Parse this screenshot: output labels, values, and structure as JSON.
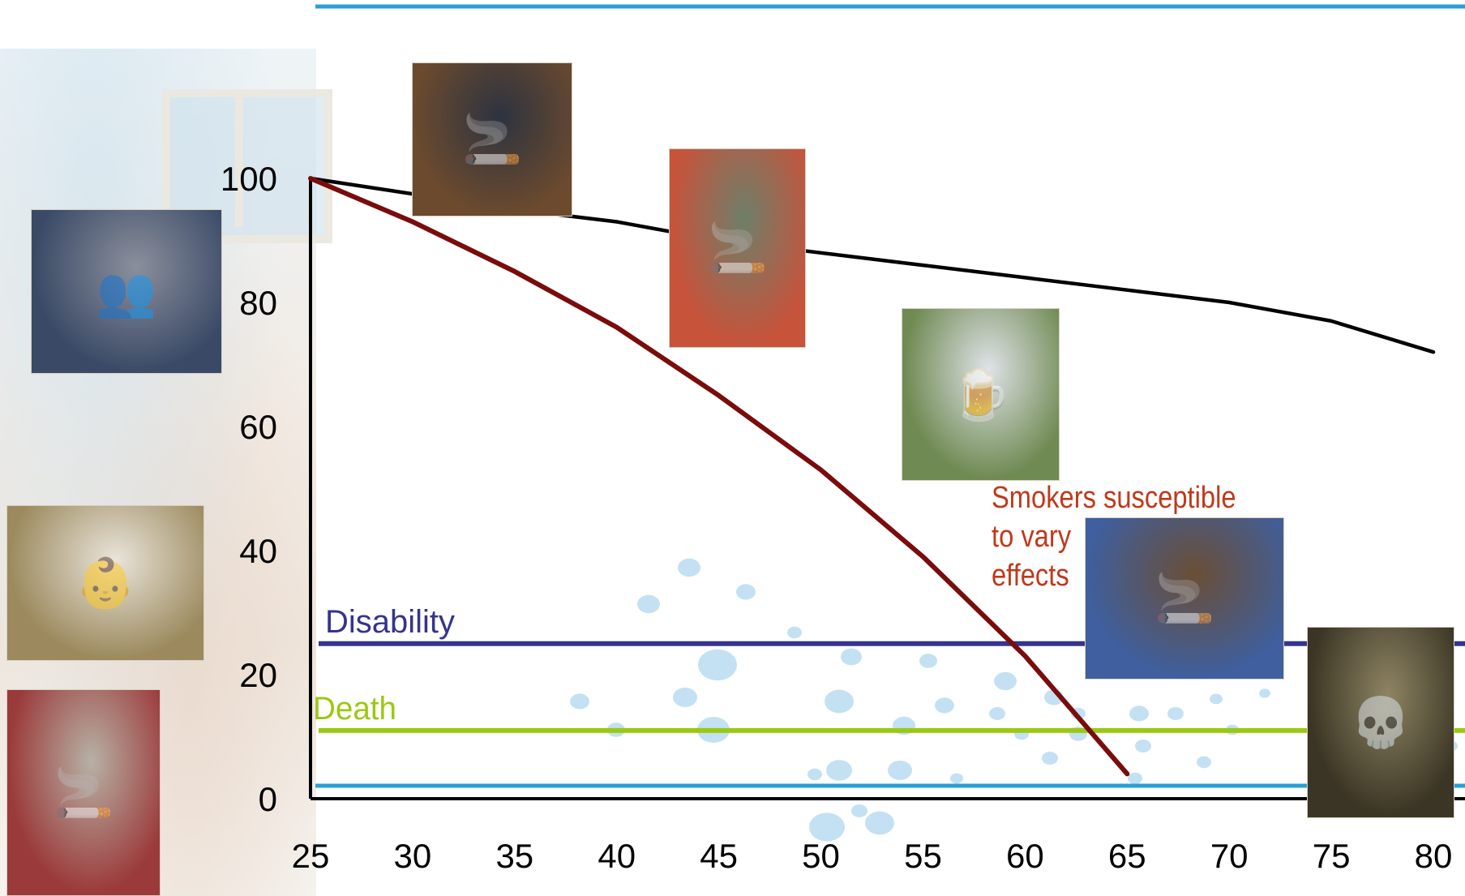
{
  "chart_data": {
    "type": "line",
    "x": [
      25,
      30,
      35,
      40,
      45,
      50,
      55,
      60,
      65,
      70,
      75,
      80
    ],
    "xlim": [
      25,
      80
    ],
    "ylim": [
      0,
      100
    ],
    "x_ticks": [
      "25",
      "30",
      "35",
      "40",
      "45",
      "50",
      "55",
      "60",
      "65",
      "70",
      "75",
      "80"
    ],
    "y_ticks": [
      "0",
      "20",
      "40",
      "60",
      "80",
      "100"
    ],
    "series": [
      {
        "name": "",
        "color": "#000000",
        "x": [
          25,
          30,
          35,
          40,
          45,
          50,
          55,
          60,
          65,
          70,
          75,
          80
        ],
        "values": [
          100,
          97.5,
          95,
          93,
          90,
          88,
          86,
          84,
          82,
          80,
          77,
          72
        ]
      },
      {
        "name": "",
        "color": "#7a0c0c",
        "x": [
          25,
          30,
          35,
          40,
          45,
          50,
          55,
          60,
          65
        ],
        "values": [
          100,
          93,
          85,
          76,
          65,
          53,
          39,
          23,
          4
        ]
      }
    ],
    "reference_lines": [
      {
        "label": "Disability",
        "value": 25,
        "color": "#35348e"
      },
      {
        "label": "Death",
        "value": 11,
        "color": "#9bc813"
      }
    ],
    "annotations": [
      "Smokers susceptible",
      "to vary",
      "effects"
    ],
    "grid": false,
    "legend": "none"
  },
  "decor": {
    "accent_color": "#2a9fd6",
    "photos": [
      {
        "name": "boys-lighting-cigarettes-photo",
        "glyph": "👥",
        "c1": "#3a4a66",
        "c2": "#8b8f9c"
      },
      {
        "name": "young-woman-smoking-photo",
        "glyph": "🚬",
        "c1": "#6b4a2e",
        "c2": "#2d3340"
      },
      {
        "name": "older-woman-smoking-photo",
        "glyph": "🚬",
        "c1": "#c7533b",
        "c2": "#6e7f6a"
      },
      {
        "name": "man-with-beer-smoking-photo",
        "glyph": "🍺",
        "c1": "#6f8a52",
        "c2": "#dfe2e8"
      },
      {
        "name": "mother-with-baby-smoking-photo",
        "glyph": "👶",
        "c1": "#9c8a5e",
        "c2": "#e9e4da"
      },
      {
        "name": "pregnant-woman-smoking-photo",
        "glyph": "🚬",
        "c1": "#9b3a3a",
        "c2": "#b7b1a5"
      },
      {
        "name": "old-man-smoking-photo",
        "glyph": "🚬",
        "c1": "#3f5f9e",
        "c2": "#6a4e36"
      },
      {
        "name": "skull-with-cigarette-painting",
        "glyph": "💀",
        "c1": "#3a3524",
        "c2": "#8e8463"
      }
    ]
  }
}
